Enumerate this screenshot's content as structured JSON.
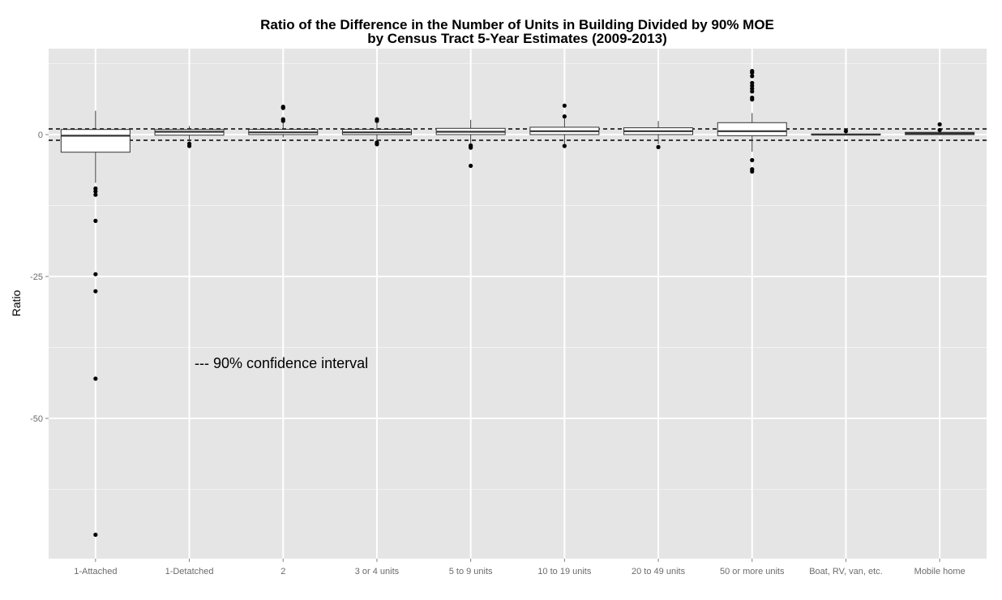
{
  "chart_data": {
    "type": "boxplot",
    "title": "Ratio of the Difference in the Number of Units in Building Divided by 90% MOE",
    "subtitle": "by Census Tract 5-Year Estimates (2009-2013)",
    "xlabel": "",
    "ylabel": "Ratio",
    "ylim": [
      -75,
      15
    ],
    "y_ticks": [
      {
        "value": 0,
        "label": "0"
      },
      {
        "value": -25,
        "label": "-25"
      },
      {
        "value": -50,
        "label": "-50"
      }
    ],
    "grid": true,
    "reference_lines": [
      {
        "value": 1,
        "style": "dashed"
      },
      {
        "value": -1,
        "style": "dashed"
      }
    ],
    "annotation": {
      "text": "--- 90% confidence interval",
      "x": 2.0,
      "y": -40.3
    },
    "categories": [
      "1-Attached",
      "1-Detatched",
      "2",
      "3 or 4 units",
      "5 to 9 units",
      "10 to 19 units",
      "20 to 49 units",
      "50 or more units",
      "Boat, RV, van, etc.",
      "Mobile home"
    ],
    "boxes": [
      {
        "category": "1-Attached",
        "whisker_low": -8.5,
        "q1": -3.1,
        "median": -0.2,
        "q3": 0.9,
        "whisker_high": 4.2,
        "outliers": [
          -9.5,
          -10.0,
          -10.6,
          -15.2,
          -24.6,
          -27.6,
          -43.0,
          -70.5
        ]
      },
      {
        "category": "1-Detatched",
        "whisker_low": -1.2,
        "q1": -0.1,
        "median": 0.5,
        "q3": 0.9,
        "whisker_high": 1.5,
        "outliers": [
          -1.6,
          -2.0
        ]
      },
      {
        "category": "2",
        "whisker_low": -0.5,
        "q1": 0.0,
        "median": 0.4,
        "q3": 0.9,
        "whisker_high": 2.0,
        "outliers": [
          2.4,
          2.7,
          4.7,
          4.9
        ]
      },
      {
        "category": "3 or 4 units",
        "whisker_low": -1.2,
        "q1": 0.0,
        "median": 0.4,
        "q3": 0.9,
        "whisker_high": 2.0,
        "outliers": [
          2.4,
          2.7,
          -1.4,
          -1.7
        ]
      },
      {
        "category": "5 to 9 units",
        "whisker_low": -1.5,
        "q1": 0.0,
        "median": 0.5,
        "q3": 1.1,
        "whisker_high": 2.6,
        "outliers": [
          -1.9,
          -2.1,
          -2.3,
          -5.5
        ]
      },
      {
        "category": "10 to 19 units",
        "whisker_low": -1.6,
        "q1": 0.0,
        "median": 0.6,
        "q3": 1.3,
        "whisker_high": 2.8,
        "outliers": [
          3.2,
          5.1,
          -2.0
        ]
      },
      {
        "category": "20 to 49 units",
        "whisker_low": -1.7,
        "q1": 0.0,
        "median": 0.6,
        "q3": 1.2,
        "whisker_high": 2.4,
        "outliers": [
          -2.2
        ]
      },
      {
        "category": "50 or more units",
        "whisker_low": -3.0,
        "q1": -0.2,
        "median": 0.6,
        "q3": 2.1,
        "whisker_high": 3.8,
        "outliers": [
          6.2,
          6.5,
          7.6,
          8.1,
          8.6,
          9.1,
          10.3,
          10.9,
          11.2,
          -4.5,
          -6.1,
          -6.5
        ]
      },
      {
        "category": "Boat, RV, van, etc.",
        "whisker_low": 0.0,
        "q1": 0.0,
        "median": 0.0,
        "q3": 0.1,
        "whisker_high": 0.5,
        "outliers": [
          0.6
        ]
      },
      {
        "category": "Mobile home",
        "whisker_low": -0.1,
        "q1": 0.0,
        "median": 0.2,
        "q3": 0.4,
        "whisker_high": 1.0,
        "outliers": [
          0.8,
          1.8
        ]
      }
    ],
    "colors": {
      "panel": "#e5e5e5",
      "grid_major": "#ffffff",
      "grid_minor": "#f2f2f2",
      "box_fill": "#ffffff",
      "stroke": "#333333",
      "points": "#000000",
      "tick_text": "#6b6b6b"
    }
  }
}
